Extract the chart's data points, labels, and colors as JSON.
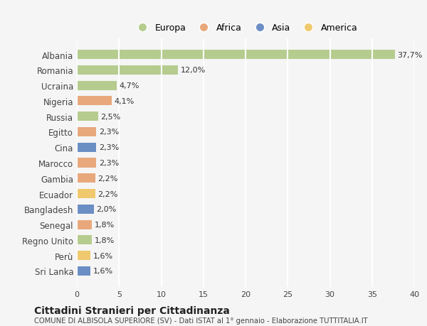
{
  "countries": [
    "Albania",
    "Romania",
    "Ucraina",
    "Nigeria",
    "Russia",
    "Egitto",
    "Cina",
    "Marocco",
    "Gambia",
    "Ecuador",
    "Bangladesh",
    "Senegal",
    "Regno Unito",
    "Perù",
    "Sri Lanka"
  ],
  "values": [
    37.7,
    12.0,
    4.7,
    4.1,
    2.5,
    2.3,
    2.3,
    2.3,
    2.2,
    2.2,
    2.0,
    1.8,
    1.8,
    1.6,
    1.6
  ],
  "continents": [
    "Europa",
    "Europa",
    "Europa",
    "Africa",
    "Europa",
    "Africa",
    "Asia",
    "Africa",
    "Africa",
    "America",
    "Asia",
    "Africa",
    "Europa",
    "America",
    "Asia"
  ],
  "colors": {
    "Europa": "#b5cc8e",
    "Africa": "#e8a87c",
    "Asia": "#6b8ec4",
    "America": "#f0c96e"
  },
  "xlim": [
    0,
    40
  ],
  "xticks": [
    0,
    5,
    10,
    15,
    20,
    25,
    30,
    35,
    40
  ],
  "title": "Cittadini Stranieri per Cittadinanza",
  "subtitle": "COMUNE DI ALBISOLA SUPERIORE (SV) - Dati ISTAT al 1° gennaio - Elaborazione TUTTITALIA.IT",
  "background_color": "#f5f5f5",
  "grid_color": "#ffffff",
  "bar_height": 0.6,
  "legend_order": [
    "Europa",
    "Africa",
    "Asia",
    "America"
  ]
}
